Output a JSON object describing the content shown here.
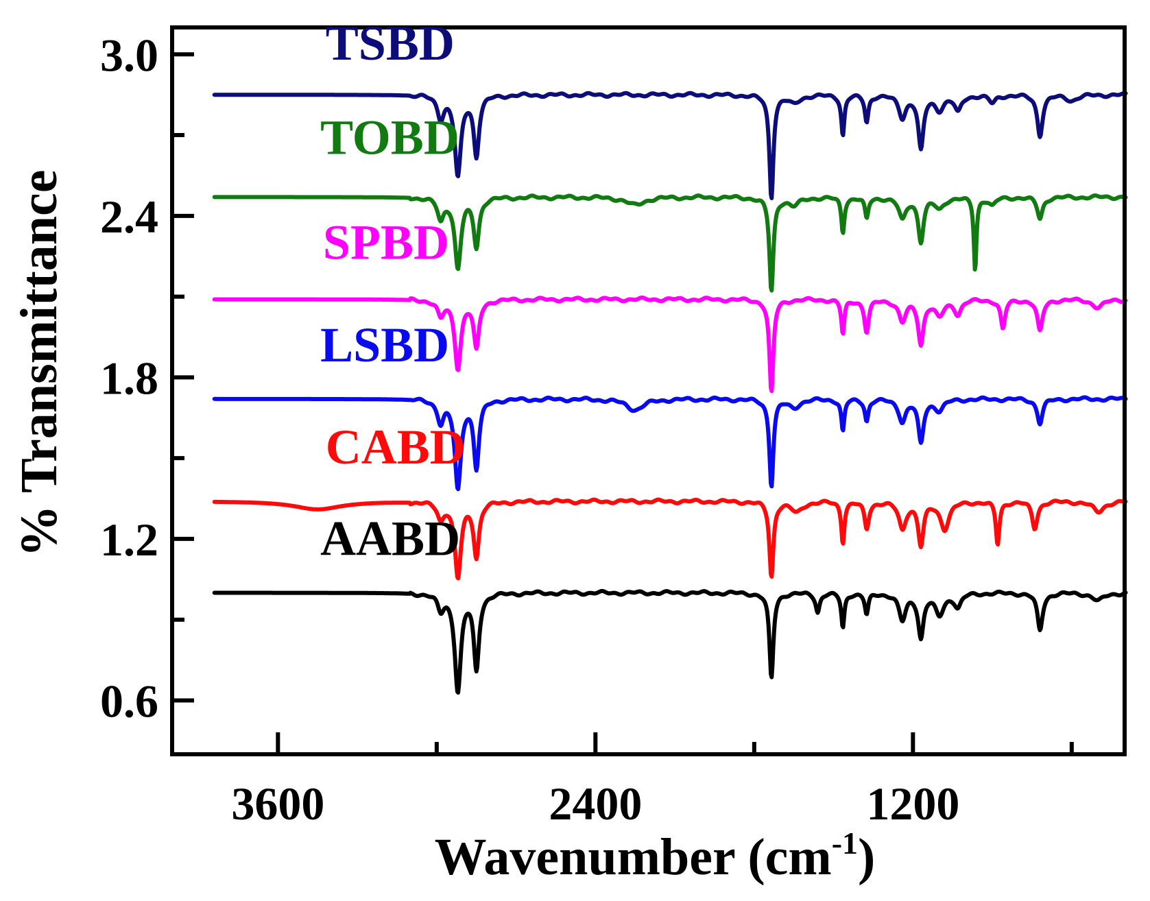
{
  "chart_data": {
    "type": "line",
    "title": "",
    "xlabel_main": "Wavenumber (cm",
    "xlabel_sup": "-1",
    "xlabel_close": ")",
    "ylabel": "% Transmittance",
    "xlim": [
      4000,
      400
    ],
    "ylim": [
      0.4,
      3.1
    ],
    "x_ticks": [
      3600,
      2400,
      1200
    ],
    "x_minor_ticks": [
      3000,
      1800,
      600
    ],
    "y_ticks": [
      "3.0",
      "2.4",
      "1.8",
      "1.2",
      "0.6"
    ],
    "y_tick_values": [
      3.0,
      2.4,
      1.8,
      1.2,
      0.6
    ],
    "y_minor_ticks": [
      2.7,
      2.1,
      1.5,
      0.9
    ],
    "grid": false,
    "series": [
      {
        "name": "TSBD",
        "color": "#0d0d7a",
        "baseline": 2.85,
        "bands": [
          [
            2985,
            0.08,
            14
          ],
          [
            2920,
            0.3,
            14
          ],
          [
            2850,
            0.22,
            12
          ],
          [
            1735,
            0.38,
            9
          ],
          [
            1650,
            0.03,
            25
          ],
          [
            1465,
            0.15,
            7
          ],
          [
            1375,
            0.1,
            8
          ],
          [
            1240,
            0.08,
            16
          ],
          [
            1170,
            0.2,
            12
          ],
          [
            1100,
            0.05,
            20
          ],
          [
            1030,
            0.06,
            15
          ],
          [
            900,
            0.03,
            15
          ],
          [
            720,
            0.15,
            12
          ],
          [
            600,
            0.02,
            25
          ]
        ],
        "lines": [
          {
            "x": 1820,
            "y": 2.85
          },
          {
            "x": 600,
            "y": 2.85
          }
        ],
        "label": {
          "text": "TSBD",
          "x_data": 3420,
          "y_data": 2.98
        }
      },
      {
        "name": "TOBD",
        "color": "#117a11",
        "baseline": 2.47,
        "bands": [
          [
            2985,
            0.08,
            14
          ],
          [
            2920,
            0.26,
            14
          ],
          [
            2850,
            0.18,
            12
          ],
          [
            2250,
            0.03,
            40
          ],
          [
            1735,
            0.35,
            9
          ],
          [
            1650,
            0.03,
            25
          ],
          [
            1465,
            0.13,
            7
          ],
          [
            1375,
            0.08,
            8
          ],
          [
            1240,
            0.08,
            16
          ],
          [
            1170,
            0.16,
            12
          ],
          [
            1100,
            0.04,
            20
          ],
          [
            965,
            0.27,
            6
          ],
          [
            900,
            0.03,
            15
          ],
          [
            720,
            0.08,
            12
          ]
        ],
        "label": {
          "text": "TOBD",
          "x_data": 3440,
          "y_data": 2.63
        }
      },
      {
        "name": "SPBD",
        "color": "#ff00ff",
        "baseline": 2.09,
        "bands": [
          [
            2985,
            0.06,
            14
          ],
          [
            2920,
            0.25,
            14
          ],
          [
            2850,
            0.18,
            12
          ],
          [
            1735,
            0.35,
            9
          ],
          [
            1465,
            0.13,
            7
          ],
          [
            1375,
            0.12,
            10
          ],
          [
            1240,
            0.08,
            16
          ],
          [
            1170,
            0.16,
            12
          ],
          [
            1100,
            0.06,
            20
          ],
          [
            1030,
            0.05,
            15
          ],
          [
            860,
            0.11,
            10
          ],
          [
            720,
            0.12,
            12
          ],
          [
            500,
            0.03,
            25
          ]
        ],
        "label": {
          "text": "SPBD",
          "x_data": 3430,
          "y_data": 2.24
        }
      },
      {
        "name": "LSBD",
        "color": "#0a0aee",
        "baseline": 1.72,
        "bands": [
          [
            2985,
            0.08,
            14
          ],
          [
            2920,
            0.33,
            14
          ],
          [
            2850,
            0.25,
            12
          ],
          [
            2250,
            0.04,
            40
          ],
          [
            1735,
            0.32,
            9
          ],
          [
            1650,
            0.03,
            25
          ],
          [
            1465,
            0.12,
            7
          ],
          [
            1375,
            0.08,
            8
          ],
          [
            1240,
            0.08,
            16
          ],
          [
            1170,
            0.16,
            12
          ],
          [
            1100,
            0.04,
            20
          ],
          [
            720,
            0.09,
            12
          ]
        ],
        "label": {
          "text": "LSBD",
          "x_data": 3440,
          "y_data": 1.86
        }
      },
      {
        "name": "CABD",
        "color": "#ff0a0a",
        "baseline": 1.34,
        "bands": [
          [
            3450,
            0.03,
            110
          ],
          [
            2985,
            0.06,
            14
          ],
          [
            2920,
            0.28,
            14
          ],
          [
            2850,
            0.2,
            12
          ],
          [
            1735,
            0.28,
            9
          ],
          [
            1640,
            0.04,
            25
          ],
          [
            1465,
            0.15,
            7
          ],
          [
            1375,
            0.1,
            10
          ],
          [
            1240,
            0.1,
            16
          ],
          [
            1170,
            0.16,
            12
          ],
          [
            1080,
            0.1,
            20
          ],
          [
            880,
            0.16,
            8
          ],
          [
            740,
            0.1,
            12
          ],
          [
            500,
            0.04,
            25
          ]
        ],
        "label": {
          "text": "CABD",
          "x_data": 3420,
          "y_data": 1.48
        }
      },
      {
        "name": "AABD",
        "color": "#000000",
        "baseline": 1.0,
        "bands": [
          [
            2985,
            0.06,
            14
          ],
          [
            2920,
            0.36,
            14
          ],
          [
            2850,
            0.28,
            12
          ],
          [
            1735,
            0.32,
            9
          ],
          [
            1560,
            0.07,
            9
          ],
          [
            1465,
            0.13,
            7
          ],
          [
            1375,
            0.08,
            8
          ],
          [
            1240,
            0.1,
            16
          ],
          [
            1170,
            0.16,
            12
          ],
          [
            1100,
            0.08,
            20
          ],
          [
            1030,
            0.05,
            15
          ],
          [
            720,
            0.14,
            12
          ],
          [
            500,
            0.03,
            25
          ]
        ],
        "label": {
          "text": "AABD",
          "x_data": 3440,
          "y_data": 1.14
        }
      }
    ]
  }
}
